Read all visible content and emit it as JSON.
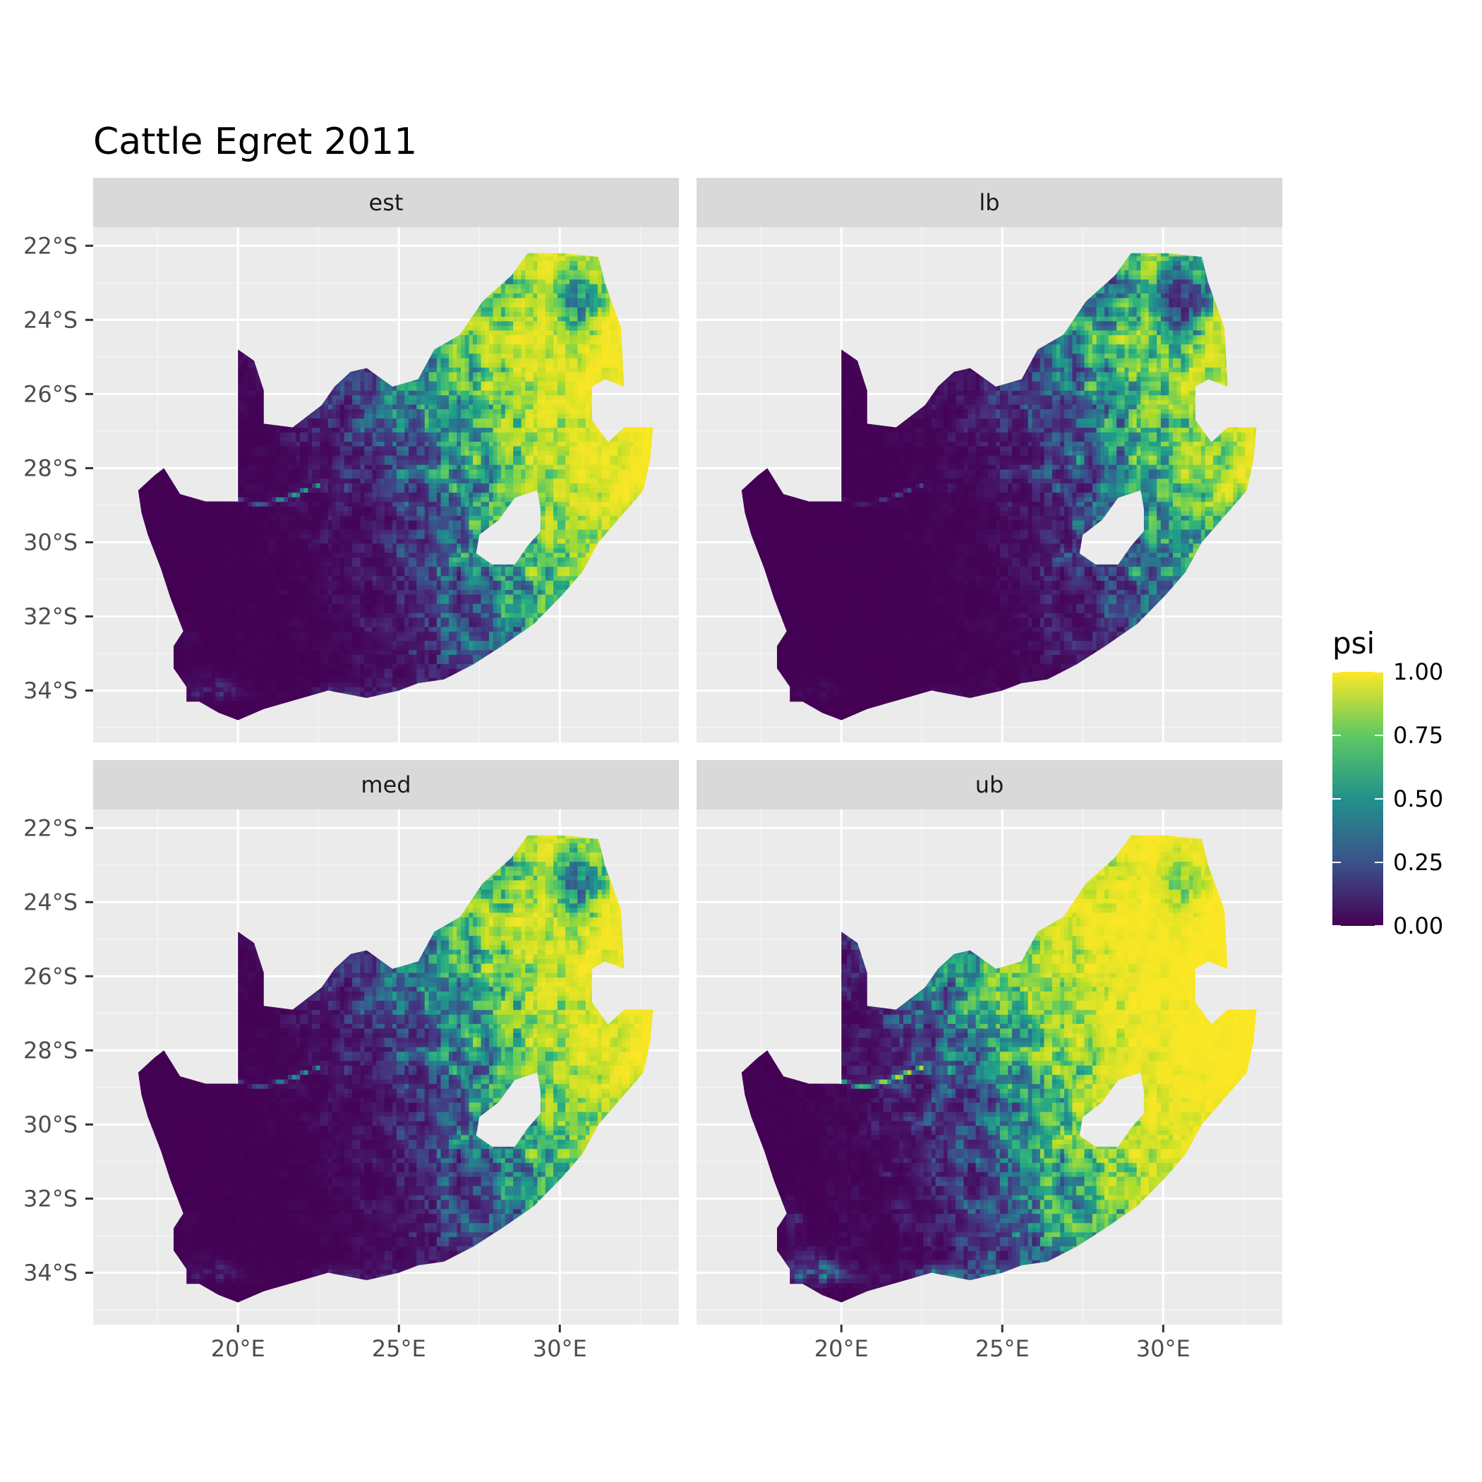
{
  "chart_data": {
    "type": "heatmap",
    "title": "Cattle Egret 2011",
    "panels": [
      "est",
      "lb",
      "med",
      "ub"
    ],
    "x_ticks": [
      {
        "value": 20,
        "label": "20°E"
      },
      {
        "value": 25,
        "label": "25°E"
      },
      {
        "value": 30,
        "label": "30°E"
      }
    ],
    "y_ticks": [
      {
        "value": -22,
        "label": "22°S"
      },
      {
        "value": -24,
        "label": "24°S"
      },
      {
        "value": -26,
        "label": "26°S"
      },
      {
        "value": -28,
        "label": "28°S"
      },
      {
        "value": -30,
        "label": "30°S"
      },
      {
        "value": -32,
        "label": "32°S"
      },
      {
        "value": -34,
        "label": "34°S"
      }
    ],
    "xlim": [
      15.5,
      33.7
    ],
    "ylim": [
      -35.4,
      -21.5
    ],
    "legend": {
      "title": "psi",
      "breaks": [
        {
          "value": 1.0,
          "label": "1.00"
        },
        {
          "value": 0.75,
          "label": "0.75"
        },
        {
          "value": 0.5,
          "label": "0.50"
        },
        {
          "value": 0.25,
          "label": "0.25"
        },
        {
          "value": 0.0,
          "label": "0.00"
        }
      ],
      "colors": [
        "#440154",
        "#3b528b",
        "#21918c",
        "#5ec962",
        "#fde725"
      ],
      "range": [
        0,
        1
      ],
      "placement": "right"
    },
    "colors": {
      "panel_background": "#ebebeb",
      "grid": "#ffffff",
      "strip_background": "#d9d9d9"
    },
    "grid": true
  }
}
